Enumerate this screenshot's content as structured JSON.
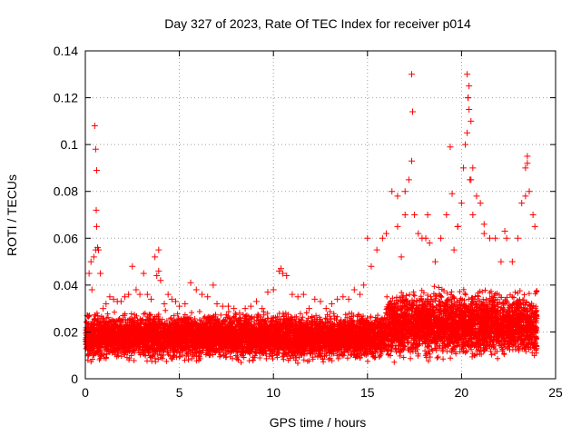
{
  "chart_data": {
    "type": "scatter",
    "title": "Day 327 of 2023, Rate Of TEC Index for receiver p014",
    "xlabel": "GPS time / hours",
    "ylabel": "ROTI / TECUs",
    "xlim": [
      0,
      25
    ],
    "ylim": [
      0,
      0.14
    ],
    "xticks": [
      0,
      5,
      10,
      15,
      20,
      25
    ],
    "xtick_labels": [
      "0",
      "5",
      "10",
      "15",
      "20",
      "25"
    ],
    "yticks": [
      0,
      0.02,
      0.04,
      0.06,
      0.08,
      0.1,
      0.12,
      0.14
    ],
    "ytick_labels": [
      "0",
      "0.02",
      "0.04",
      "0.06",
      "0.08",
      "0.1",
      "0.12",
      "0.14"
    ],
    "grid": true,
    "marker": "+",
    "color": "#ff0000",
    "series": [
      {
        "name": "ROTI",
        "x": [
          0.1,
          0.2,
          0.3,
          0.35,
          0.45,
          0.55,
          0.6,
          0.65,
          0.7,
          0.8,
          0.95,
          1.1,
          1.3,
          1.5,
          1.7,
          1.9,
          2.1,
          2.3,
          2.5,
          2.7,
          2.9,
          3.1,
          3.3,
          3.5,
          3.7,
          3.8,
          3.9,
          4.0,
          4.2,
          4.4,
          4.6,
          4.8,
          5.0,
          5.3,
          5.6,
          5.9,
          6.2,
          6.5,
          6.8,
          7.0,
          7.3,
          7.6,
          7.9,
          8.2,
          8.5,
          8.8,
          9.1,
          9.4,
          9.7,
          10.0,
          10.3,
          10.5,
          10.7,
          11.0,
          11.3,
          11.6,
          11.9,
          12.2,
          12.5,
          12.8,
          13.1,
          13.4,
          13.7,
          14.0,
          14.3,
          14.6,
          14.8,
          15.0,
          15.2,
          15.5,
          15.8,
          16.0,
          16.3,
          16.6,
          16.8,
          17.0,
          17.2,
          17.35,
          17.5,
          17.7,
          17.9,
          18.1,
          18.3,
          18.6,
          18.9,
          19.2,
          19.4,
          19.6,
          19.8,
          20.0,
          20.1,
          20.2,
          20.3,
          20.35,
          20.4,
          20.5,
          20.6,
          20.8,
          21.0,
          21.2,
          21.5,
          21.8,
          22.1,
          22.4,
          22.7,
          23.0,
          23.2,
          23.4,
          23.5,
          23.6,
          23.8,
          23.9,
          0.5,
          0.55,
          0.6,
          0.58,
          3.9,
          10.4,
          17.35,
          17.4,
          19.5,
          20.3,
          20.35,
          20.4,
          20.45,
          23.4,
          23.5,
          16.6,
          17.0,
          18.2,
          19.8,
          21.2,
          20.5,
          20.6,
          22.3
        ],
        "y": [
          0.027,
          0.045,
          0.05,
          0.038,
          0.052,
          0.055,
          0.065,
          0.056,
          0.055,
          0.045,
          0.03,
          0.032,
          0.035,
          0.034,
          0.033,
          0.033,
          0.035,
          0.036,
          0.048,
          0.038,
          0.036,
          0.045,
          0.036,
          0.034,
          0.052,
          0.044,
          0.046,
          0.042,
          0.032,
          0.036,
          0.034,
          0.033,
          0.031,
          0.032,
          0.041,
          0.038,
          0.036,
          0.035,
          0.04,
          0.032,
          0.031,
          0.031,
          0.03,
          0.028,
          0.03,
          0.031,
          0.033,
          0.03,
          0.037,
          0.038,
          0.046,
          0.045,
          0.044,
          0.036,
          0.035,
          0.036,
          0.03,
          0.034,
          0.033,
          0.03,
          0.032,
          0.034,
          0.035,
          0.034,
          0.038,
          0.036,
          0.04,
          0.06,
          0.048,
          0.055,
          0.06,
          0.062,
          0.08,
          0.065,
          0.052,
          0.07,
          0.085,
          0.093,
          0.07,
          0.062,
          0.06,
          0.06,
          0.058,
          0.05,
          0.06,
          0.07,
          0.099,
          0.055,
          0.065,
          0.075,
          0.09,
          0.1,
          0.13,
          0.12,
          0.115,
          0.11,
          0.09,
          0.078,
          0.075,
          0.062,
          0.06,
          0.06,
          0.05,
          0.06,
          0.05,
          0.06,
          0.075,
          0.09,
          0.095,
          0.08,
          0.07,
          0.065,
          0.108,
          0.098,
          0.089,
          0.072,
          0.055,
          0.047,
          0.13,
          0.114,
          0.079,
          0.105,
          0.12,
          0.125,
          0.085,
          0.078,
          0.092,
          0.078,
          0.08,
          0.07,
          0.065,
          0.066,
          0.085,
          0.07,
          0.063
        ]
      }
    ],
    "noise": {
      "points": 9000,
      "x_range": [
        0,
        24
      ],
      "baseline_ranges": [
        {
          "x": [
            0,
            12
          ],
          "y": [
            0.006,
            0.03
          ]
        },
        {
          "x": [
            12,
            16
          ],
          "y": [
            0.006,
            0.03
          ]
        },
        {
          "x": [
            16,
            24
          ],
          "y": [
            0.006,
            0.04
          ]
        }
      ]
    }
  }
}
